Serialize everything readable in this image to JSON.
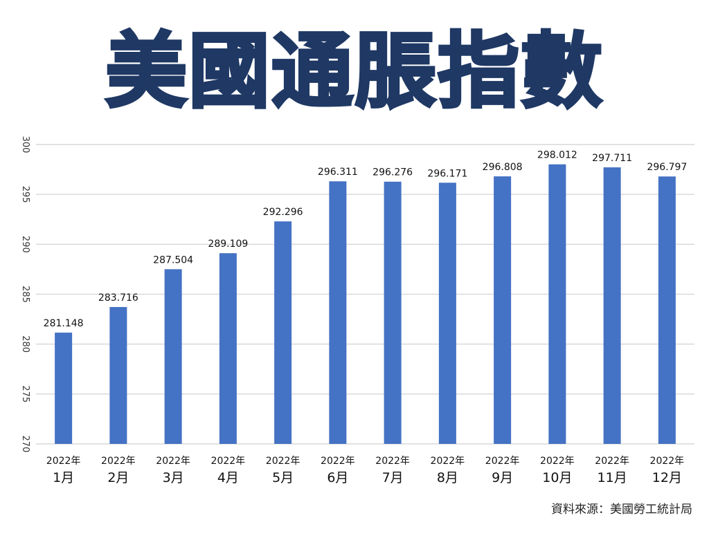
{
  "title": "美國通脹指數",
  "source_note": "資料來源：美國勞工統計局",
  "colors": {
    "bar": "#4472c4",
    "title": "#1f3864",
    "grid": "#d9d9d9"
  },
  "chart_data": {
    "type": "bar",
    "title": "美國通脹指數",
    "xlabel": "",
    "ylabel": "",
    "categories": [
      [
        "2022年",
        "1月"
      ],
      [
        "2022年",
        "2月"
      ],
      [
        "2022年",
        "3月"
      ],
      [
        "2022年",
        "4月"
      ],
      [
        "2022年",
        "5月"
      ],
      [
        "2022年",
        "6月"
      ],
      [
        "2022年",
        "7月"
      ],
      [
        "2022年",
        "8月"
      ],
      [
        "2022年",
        "9月"
      ],
      [
        "2022年",
        "10月"
      ],
      [
        "2022年",
        "11月"
      ],
      [
        "2022年",
        "12月"
      ]
    ],
    "values": [
      281.148,
      283.716,
      287.504,
      289.109,
      292.296,
      296.311,
      296.276,
      296.171,
      296.808,
      298.012,
      297.711,
      296.797
    ],
    "value_labels": [
      "281.148",
      "283.716",
      "287.504",
      "289.109",
      "292.296",
      "296.311",
      "296.276",
      "296.171",
      "296.808",
      "298.012",
      "297.711",
      "296.797"
    ],
    "ylim": [
      270,
      300
    ],
    "yticks": [
      270,
      275,
      280,
      285,
      290,
      295,
      300
    ],
    "grid": true,
    "legend": "none"
  }
}
